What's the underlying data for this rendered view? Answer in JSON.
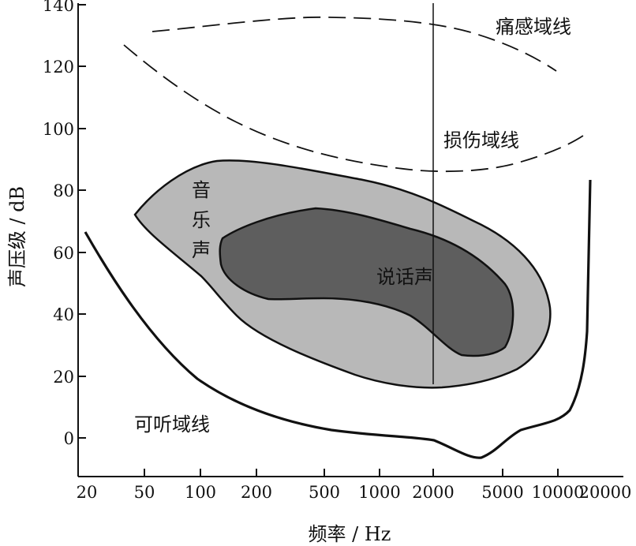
{
  "chart_data": {
    "type": "area",
    "xlabel": "频率 / Hz",
    "ylabel": "声压级 / dB",
    "x_scale": "log",
    "xticks": [
      "20",
      "50",
      "100",
      "200",
      "500",
      "1000",
      "2000",
      "5000",
      "10000",
      "20000"
    ],
    "yticks": [
      "140",
      "120",
      "100",
      "80",
      "60",
      "40",
      "20",
      "0"
    ],
    "ylim": [
      -12,
      140
    ],
    "regions": {
      "pain": "痛感域线",
      "damage": "损伤域线",
      "music": [
        "音",
        "乐",
        "声"
      ],
      "speech": "说话声",
      "hearing": "可听域线"
    },
    "colors": {
      "music_fill": "#b8b8b8",
      "speech_fill": "#5e5e5e"
    }
  }
}
